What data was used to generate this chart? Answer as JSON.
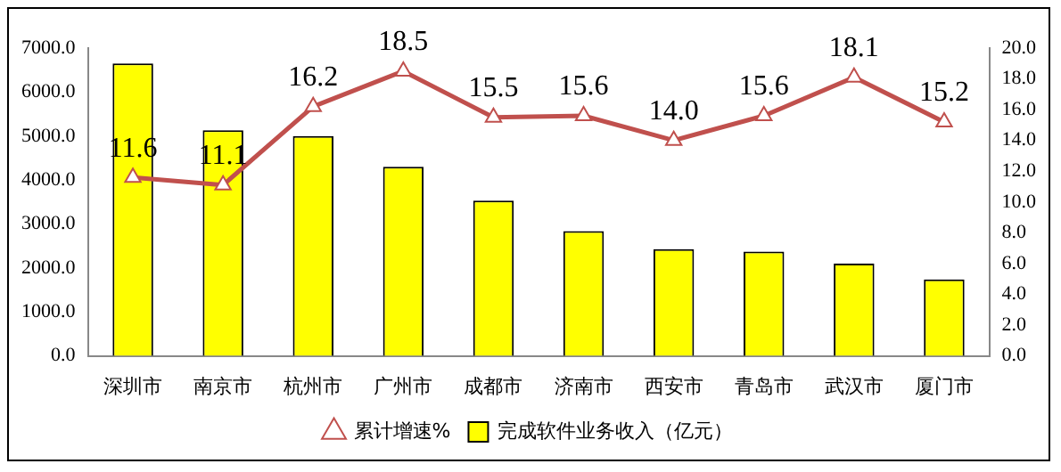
{
  "chart_data": {
    "type": "bar",
    "categories": [
      "深圳市",
      "南京市",
      "杭州市",
      "广州市",
      "成都市",
      "济南市",
      "西安市",
      "青岛市",
      "武汉市",
      "厦门市"
    ],
    "series": [
      {
        "name": "完成软件业务收入（亿元）",
        "color": "#ffff00",
        "values": [
          6650,
          5130,
          5000,
          4300,
          3530,
          2840,
          2430,
          2370,
          2100,
          1740
        ]
      },
      {
        "name": "累计增速%",
        "type": "line",
        "axis": "y2",
        "color": "#c0504d",
        "marker": "triangle",
        "values": [
          11.6,
          11.1,
          16.2,
          18.5,
          15.5,
          15.6,
          14.0,
          15.6,
          18.1,
          15.2
        ],
        "value_labels": [
          "11.6",
          "11.1",
          "16.2",
          "18.5",
          "15.5",
          "15.6",
          "14.0",
          "15.6",
          "18.1",
          "15.2"
        ]
      }
    ],
    "ylim": [
      0,
      7000
    ],
    "yticks": [
      {
        "value": 0,
        "label": "0.0"
      },
      {
        "value": 1000,
        "label": "1000.0"
      },
      {
        "value": 2000,
        "label": "2000.0"
      },
      {
        "value": 3000,
        "label": "3000.0"
      },
      {
        "value": 4000,
        "label": "4000.0"
      },
      {
        "value": 5000,
        "label": "5000.0"
      },
      {
        "value": 6000,
        "label": "6000.0"
      },
      {
        "value": 7000,
        "label": "7000.0"
      }
    ],
    "y2lim": [
      0,
      20
    ],
    "y2ticks": [
      {
        "value": 0,
        "label": "0.0"
      },
      {
        "value": 2,
        "label": "2.0"
      },
      {
        "value": 4,
        "label": "4.0"
      },
      {
        "value": 6,
        "label": "6.0"
      },
      {
        "value": 8,
        "label": "8.0"
      },
      {
        "value": 10,
        "label": "10.0"
      },
      {
        "value": 12,
        "label": "12.0"
      },
      {
        "value": 14,
        "label": "14.0"
      },
      {
        "value": 16,
        "label": "16.0"
      },
      {
        "value": 18,
        "label": "18.0"
      },
      {
        "value": 20,
        "label": "20.0"
      }
    ],
    "grid": false,
    "legend": "bottom"
  }
}
